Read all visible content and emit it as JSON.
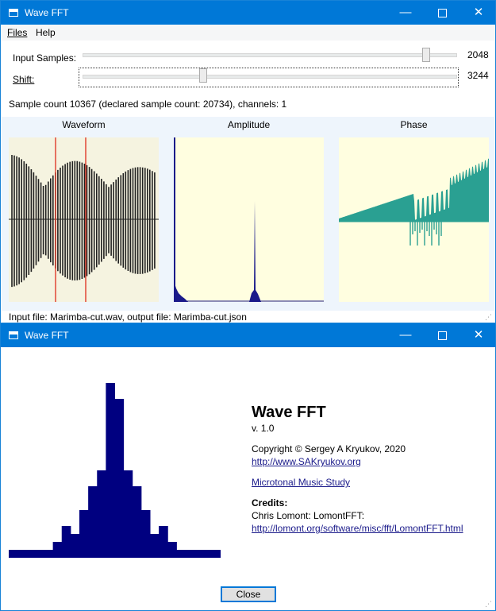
{
  "main_window": {
    "title": "Wave FFT",
    "menu": {
      "files": "Files",
      "help": "Help"
    },
    "input_samples_label": "Input Samples:",
    "input_samples_value": "2048",
    "input_samples_level": 0.93,
    "shift_label": "Shift:",
    "shift_value": "3244",
    "shift_level": 0.32,
    "sample_info": "Sample count 10367 (declared sample count: 20734), channels: 1",
    "panels": {
      "waveform": "Waveform",
      "amplitude": "Amplitude",
      "phase": "Phase"
    },
    "status": "Input file: Marimba-cut.wav, output file: Marimba-cut.json",
    "colors": {
      "titlebar": "#0078d7",
      "plot_bg": "#fffee0",
      "waveform_bg": "#f5f3e0",
      "waveform_line": "#202020",
      "marker": "#e03a2a",
      "amplitude": "#1a1a8a",
      "phase": "#2aa092"
    }
  },
  "about_window": {
    "title": "Wave FFT",
    "app_name": "Wave FFT",
    "version": "v. 1.0",
    "copyright": "Copyright © Sergey A Kryukov, 2020",
    "website": "http://www.SAKryukov.org",
    "music_link": "Microtonal Music Study",
    "credits_heading": "Credits:",
    "credits_text": "Chris Lomont: LomontFFT:",
    "credits_link": "http://lomont.org/software/misc/fft/LomontFFT.html",
    "close_button": "Close",
    "colors": {
      "logo": "#000080"
    }
  }
}
